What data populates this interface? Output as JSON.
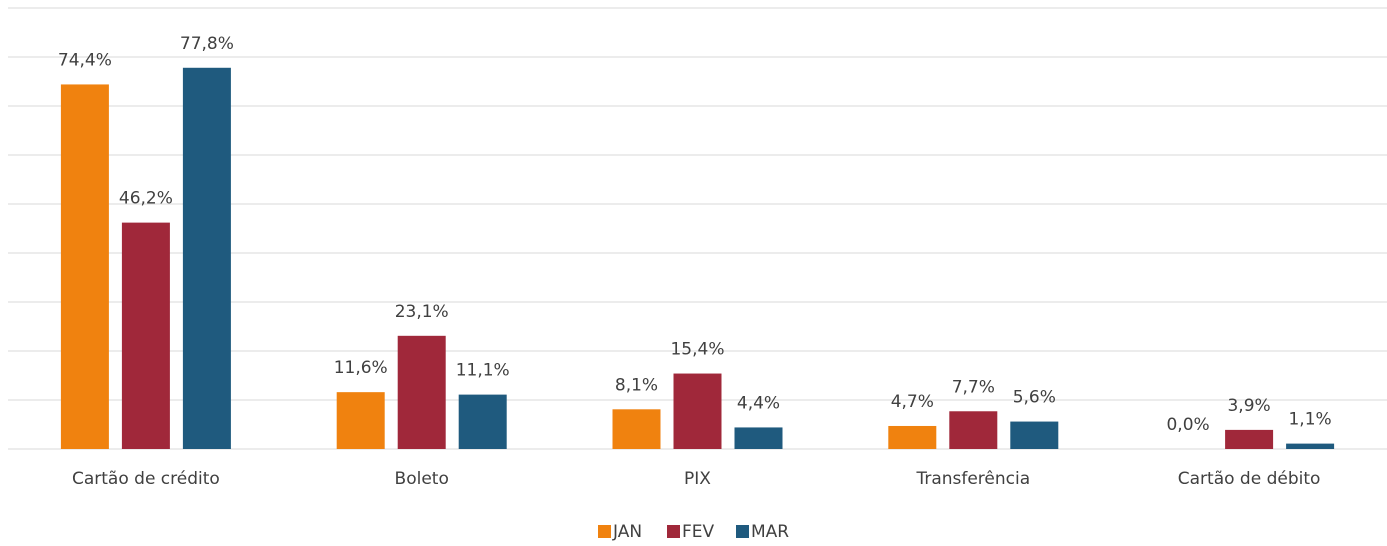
{
  "chart_data": {
    "type": "bar",
    "categories": [
      "Cartão de crédito",
      "Boleto",
      "PIX",
      "Transferência",
      "Cartão de débito"
    ],
    "series": [
      {
        "name": "JAN",
        "color": "#f0820f",
        "values": [
          74.4,
          11.6,
          8.1,
          4.7,
          0.0
        ],
        "value_labels": [
          "74,4%",
          "11,6%",
          "8,1%",
          "4,7%",
          "0,0%"
        ]
      },
      {
        "name": "FEV",
        "color": "#a0283a",
        "values": [
          46.2,
          23.1,
          15.4,
          7.7,
          3.9
        ],
        "value_labels": [
          "46,2%",
          "23,1%",
          "15,4%",
          "7,7%",
          "3,9%"
        ]
      },
      {
        "name": "MAR",
        "color": "#1f5a7e",
        "values": [
          77.8,
          11.1,
          4.4,
          5.6,
          1.1
        ],
        "value_labels": [
          "77,8%",
          "11,1%",
          "4,4%",
          "5,6%",
          "1,1%"
        ]
      }
    ],
    "ylim": [
      0,
      90
    ],
    "yticks": [
      0,
      10,
      20,
      30,
      40,
      50,
      60,
      70,
      80,
      90
    ],
    "grid": true,
    "legend": "bottom"
  }
}
